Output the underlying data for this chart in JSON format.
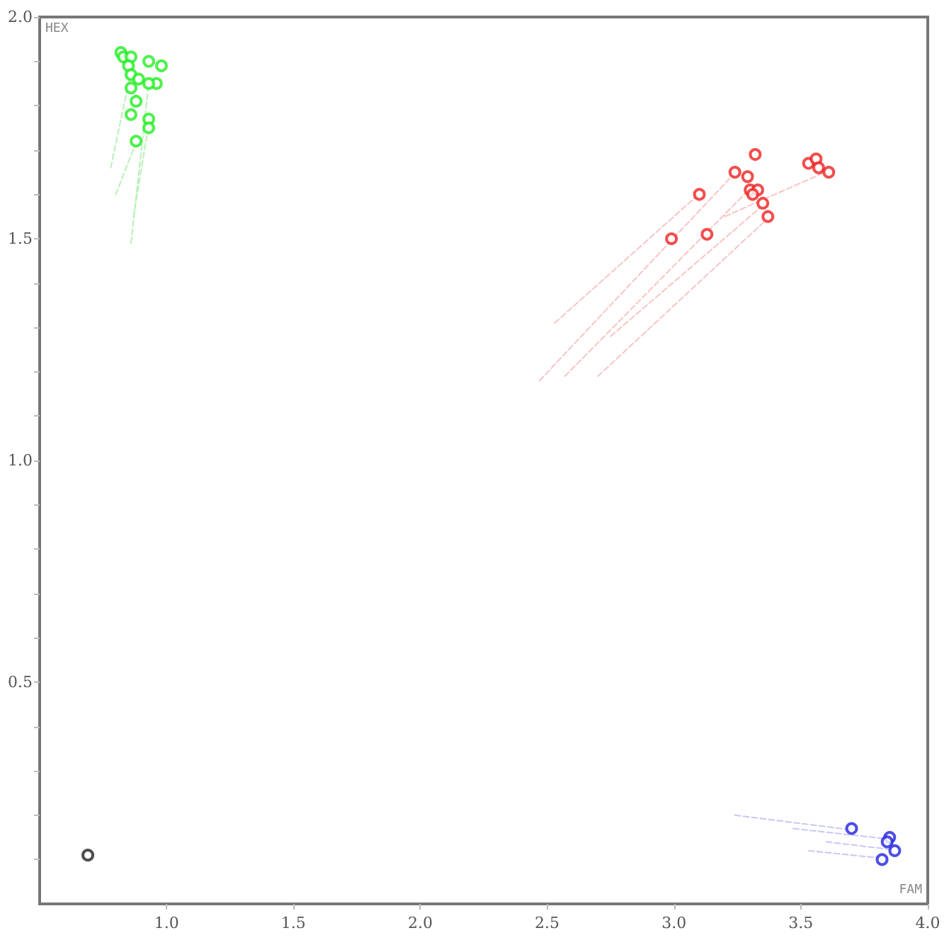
{
  "chart_data": {
    "type": "scatter",
    "xlabel": "FAM",
    "ylabel": "HEX",
    "marker": "circle",
    "grid": false,
    "xlim": [
      0.5,
      4.0
    ],
    "ylim": [
      0,
      2.0
    ],
    "xticks": [
      {
        "value": 1.0,
        "label": "1.0"
      },
      {
        "value": 1.5,
        "label": "1.5"
      },
      {
        "value": 2.0,
        "label": "2.0"
      },
      {
        "value": 2.5,
        "label": "2.5"
      },
      {
        "value": 3.0,
        "label": "3.0"
      },
      {
        "value": 3.5,
        "label": "3.5"
      },
      {
        "value": 4.0,
        "label": "4.0"
      }
    ],
    "yticks": [
      {
        "value": 0.1,
        "label": null
      },
      {
        "value": 0.2,
        "label": null
      },
      {
        "value": 0.3,
        "label": null
      },
      {
        "value": 0.4,
        "label": null
      },
      {
        "value": 0.5,
        "label": "0.5"
      },
      {
        "value": 0.6,
        "label": null
      },
      {
        "value": 0.7,
        "label": null
      },
      {
        "value": 0.8,
        "label": null
      },
      {
        "value": 0.9,
        "label": null
      },
      {
        "value": 1.0,
        "label": "1.0"
      },
      {
        "value": 1.1,
        "label": null
      },
      {
        "value": 1.2,
        "label": null
      },
      {
        "value": 1.3,
        "label": null
      },
      {
        "value": 1.4,
        "label": null
      },
      {
        "value": 1.5,
        "label": "1.5"
      },
      {
        "value": 1.6,
        "label": null
      },
      {
        "value": 1.7,
        "label": null
      },
      {
        "value": 1.8,
        "label": null
      },
      {
        "value": 1.9,
        "label": null
      },
      {
        "value": 2.0,
        "label": "2.0"
      }
    ],
    "series": [
      {
        "type": "line",
        "marker": "none",
        "line_style": "dashed",
        "color": "#b8f0b8",
        "x": [
          0.78,
          0.856,
          null,
          0.86,
          0.929,
          null,
          0.87,
          0.934,
          null,
          0.8,
          0.88
        ],
        "values": [
          1.66,
          1.866,
          null,
          1.49,
          1.846,
          null,
          1.55,
          1.773,
          null,
          1.6,
          1.717
        ]
      },
      {
        "type": "line",
        "marker": "none",
        "line_style": "dashed",
        "color": "#f8c4c4",
        "x": [
          2.47,
          3.236,
          null,
          2.53,
          3.099,
          null,
          2.57,
          3.296,
          null,
          2.7,
          3.372,
          null,
          2.75,
          3.352,
          null,
          3.2,
          3.607
        ],
        "values": [
          1.18,
          1.646,
          null,
          1.31,
          1.601,
          null,
          1.19,
          1.611,
          null,
          1.19,
          1.547,
          null,
          1.28,
          1.576,
          null,
          1.55,
          1.653
        ]
      },
      {
        "type": "line",
        "marker": "none",
        "line_style": "dashed",
        "color": "#c8c8f4",
        "x": [
          3.24,
          3.702,
          null,
          3.47,
          3.852,
          null,
          3.6,
          3.865,
          null,
          3.53,
          3.822
        ],
        "values": [
          0.2,
          0.167,
          null,
          0.17,
          0.146,
          null,
          0.14,
          0.122,
          null,
          0.12,
          0.103
        ]
      },
      {
        "color": "#22ee22",
        "x": [
          0.82,
          0.83,
          0.86,
          0.85,
          0.93,
          0.98,
          0.86,
          0.89,
          0.96,
          0.93,
          0.86,
          0.88,
          0.86,
          0.93,
          0.93,
          0.88
        ],
        "values": [
          1.92,
          1.91,
          1.91,
          1.89,
          1.9,
          1.89,
          1.87,
          1.86,
          1.85,
          1.85,
          1.84,
          1.81,
          1.78,
          1.77,
          1.75,
          1.72
        ]
      },
      {
        "color": "#ee2222",
        "x": [
          3.32,
          3.24,
          3.29,
          3.53,
          3.56,
          3.57,
          3.61,
          3.1,
          3.3,
          3.33,
          3.31,
          3.35,
          3.37,
          2.99,
          3.13
        ],
        "values": [
          1.69,
          1.65,
          1.64,
          1.67,
          1.68,
          1.66,
          1.65,
          1.6,
          1.61,
          1.61,
          1.6,
          1.58,
          1.55,
          1.5,
          1.51
        ]
      },
      {
        "color": "#2222dd",
        "x": [
          3.7,
          3.85,
          3.84,
          3.87,
          3.82
        ],
        "values": [
          0.17,
          0.15,
          0.14,
          0.12,
          0.1
        ]
      },
      {
        "color": "#222222",
        "x": [
          0.69
        ],
        "values": [
          0.11
        ]
      }
    ]
  }
}
